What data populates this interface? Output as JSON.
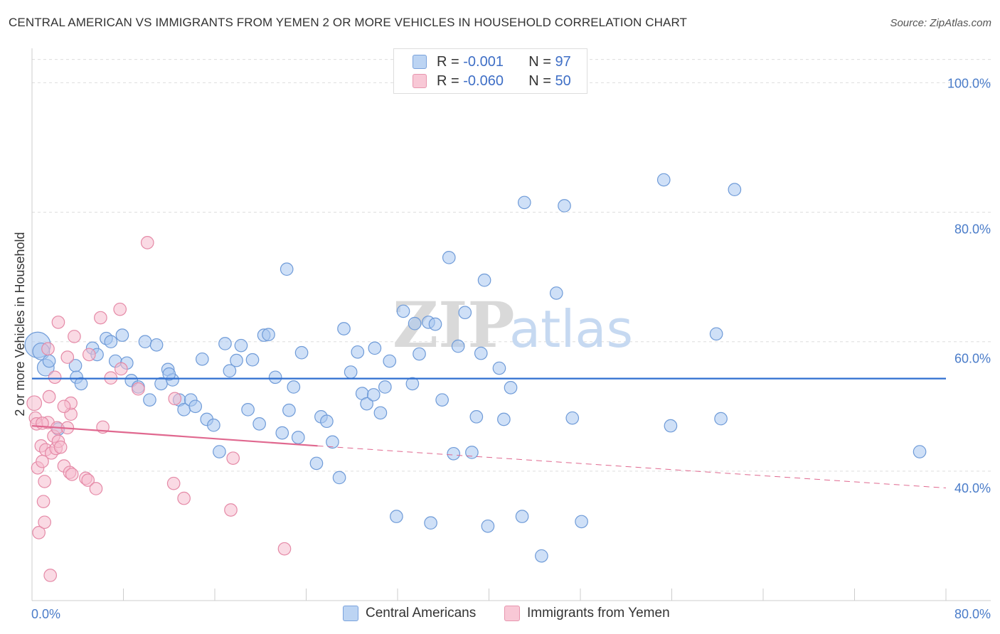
{
  "header": {
    "title": "CENTRAL AMERICAN VS IMMIGRANTS FROM YEMEN 2 OR MORE VEHICLES IN HOUSEHOLD CORRELATION CHART",
    "source": "Source: ZipAtlas.com"
  },
  "watermark": {
    "zip": "ZIP",
    "atlas": "atlas"
  },
  "legend": {
    "rows": [
      {
        "r_label": "R =",
        "r_value": "-0.001",
        "n_label": "N =",
        "n_value": "97",
        "color": "#a8c6f0"
      },
      {
        "r_label": "R =",
        "r_value": "-0.060",
        "n_label": "N =",
        "n_value": "50",
        "color": "#f4b5c8"
      }
    ]
  },
  "bottom_legend": {
    "series1": "Central Americans",
    "series2": "Immigrants from Yemen"
  },
  "colors": {
    "blue_fill": "#a8c6f0",
    "blue_stroke": "#6f9bd8",
    "blue_line": "#2f6fd0",
    "pink_fill": "#f6bccd",
    "pink_stroke": "#e58aa7",
    "pink_line": "#e0688f",
    "axis_text": "#4a7cc9",
    "grid": "#dddddd"
  },
  "chart_data": {
    "type": "scatter",
    "title": "CENTRAL AMERICAN VS IMMIGRANTS FROM YEMEN 2 OR MORE VEHICLES IN HOUSEHOLD CORRELATION CHART",
    "xlabel": "",
    "ylabel": "2 or more Vehicles in Household",
    "xlim": [
      0,
      80
    ],
    "ylim": [
      20,
      104
    ],
    "x_tick_labels": [
      "0.0%",
      "80.0%"
    ],
    "y_ticks": [
      40,
      60,
      80,
      100
    ],
    "y_tick_labels": [
      "40.0%",
      "60.0%",
      "80.0%",
      "100.0%"
    ],
    "grid": true,
    "legend_position": "top-center",
    "series": [
      {
        "name": "Central Americans",
        "R": -0.001,
        "N": 97,
        "trend": {
          "x0": 0,
          "y0": 54.3,
          "x1": 80,
          "y1": 54.3
        },
        "points": [
          [
            0.5,
            59.5,
            22
          ],
          [
            0.8,
            58.5,
            14
          ],
          [
            1.2,
            56.0,
            14
          ],
          [
            1.5,
            57.0,
            10
          ],
          [
            2.3,
            46.5,
            10
          ],
          [
            3.8,
            56.3,
            10
          ],
          [
            3.9,
            54.5,
            10
          ],
          [
            4.3,
            53.5,
            10
          ],
          [
            5.3,
            59.0,
            10
          ],
          [
            5.7,
            58.0,
            10
          ],
          [
            6.5,
            60.5,
            10
          ],
          [
            6.9,
            60.0,
            10
          ],
          [
            7.3,
            57.0,
            10
          ],
          [
            7.9,
            61.0,
            10
          ],
          [
            8.3,
            56.7,
            10
          ],
          [
            8.7,
            54.0,
            10
          ],
          [
            9.3,
            53.0,
            10
          ],
          [
            9.9,
            60.0,
            10
          ],
          [
            10.3,
            51.0,
            10
          ],
          [
            10.9,
            59.5,
            10
          ],
          [
            11.3,
            53.5,
            10
          ],
          [
            11.9,
            55.7,
            10
          ],
          [
            12.3,
            54.1,
            10
          ],
          [
            12.9,
            51.0,
            10
          ],
          [
            13.3,
            49.5,
            10
          ],
          [
            13.9,
            51.0,
            10
          ],
          [
            14.3,
            50.0,
            10
          ],
          [
            14.9,
            57.3,
            10
          ],
          [
            15.3,
            48.0,
            10
          ],
          [
            15.9,
            47.1,
            10
          ],
          [
            16.4,
            43.0,
            10
          ],
          [
            16.9,
            59.7,
            10
          ],
          [
            17.3,
            55.5,
            10
          ],
          [
            17.9,
            57.1,
            10
          ],
          [
            18.3,
            59.4,
            10
          ],
          [
            18.9,
            49.5,
            10
          ],
          [
            19.3,
            57.2,
            10
          ],
          [
            19.9,
            47.3,
            10
          ],
          [
            20.3,
            61.0,
            10
          ],
          [
            20.7,
            61.1,
            10
          ],
          [
            21.3,
            54.5,
            10
          ],
          [
            21.9,
            45.9,
            10
          ],
          [
            22.3,
            71.2,
            10
          ],
          [
            22.5,
            49.4,
            10
          ],
          [
            22.9,
            53.0,
            10
          ],
          [
            23.3,
            45.2,
            10
          ],
          [
            23.6,
            58.3,
            10
          ],
          [
            24.9,
            41.2,
            10
          ],
          [
            25.3,
            48.4,
            10
          ],
          [
            25.8,
            47.7,
            10
          ],
          [
            26.3,
            44.5,
            10
          ],
          [
            26.9,
            39.0,
            10
          ],
          [
            27.3,
            62.0,
            10
          ],
          [
            27.9,
            55.3,
            10
          ],
          [
            28.5,
            58.4,
            10
          ],
          [
            28.9,
            52.0,
            10
          ],
          [
            29.3,
            50.4,
            10
          ],
          [
            29.9,
            51.8,
            10
          ],
          [
            30.5,
            49.0,
            10
          ],
          [
            30.9,
            53.0,
            10
          ],
          [
            31.3,
            57.0,
            10
          ],
          [
            31.9,
            33.0,
            10
          ],
          [
            32.5,
            64.7,
            10
          ],
          [
            33.3,
            53.5,
            10
          ],
          [
            33.5,
            62.8,
            10
          ],
          [
            33.9,
            58.1,
            10
          ],
          [
            34.9,
            32.0,
            10
          ],
          [
            34.7,
            63.0,
            10
          ],
          [
            35.3,
            62.7,
            10
          ],
          [
            35.9,
            51.0,
            10
          ],
          [
            36.5,
            73.0,
            10
          ],
          [
            36.9,
            42.7,
            10
          ],
          [
            37.3,
            59.3,
            10
          ],
          [
            37.9,
            64.5,
            10
          ],
          [
            38.5,
            42.9,
            10
          ],
          [
            38.9,
            48.4,
            10
          ],
          [
            39.3,
            58.2,
            10
          ],
          [
            39.6,
            69.5,
            10
          ],
          [
            39.9,
            31.5,
            10
          ],
          [
            40.9,
            55.9,
            10
          ],
          [
            41.3,
            48.0,
            10
          ],
          [
            41.9,
            52.9,
            10
          ],
          [
            42.9,
            33.0,
            10
          ],
          [
            43.1,
            81.5,
            10
          ],
          [
            44.6,
            26.9,
            10
          ],
          [
            45.9,
            67.5,
            10
          ],
          [
            46.6,
            81.0,
            10
          ],
          [
            47.3,
            48.2,
            10
          ],
          [
            48.1,
            32.2,
            10
          ],
          [
            55.3,
            85.0,
            10
          ],
          [
            55.9,
            47.0,
            10
          ],
          [
            59.9,
            61.2,
            10
          ],
          [
            60.3,
            48.1,
            10
          ],
          [
            61.5,
            83.5,
            10
          ],
          [
            77.7,
            43.0,
            10
          ],
          [
            30.0,
            59.0,
            10
          ],
          [
            12.0,
            55.0,
            10
          ]
        ]
      },
      {
        "name": "Immigrants from Yemen",
        "R": -0.06,
        "N": 50,
        "trend": {
          "x0": 0,
          "y0": 47.0,
          "x1": 25,
          "y1": 43.9,
          "dash_x1": 80,
          "dash_y1": 37.4
        },
        "points": [
          [
            0.2,
            50.5,
            12
          ],
          [
            0.3,
            48.2,
            10
          ],
          [
            0.4,
            47.3,
            10
          ],
          [
            0.5,
            40.5,
            10
          ],
          [
            0.6,
            30.5,
            10
          ],
          [
            0.8,
            43.9,
            10
          ],
          [
            0.9,
            41.5,
            10
          ],
          [
            1.0,
            35.3,
            10
          ],
          [
            1.1,
            32.1,
            10
          ],
          [
            1.1,
            38.4,
            10
          ],
          [
            1.2,
            43.3,
            10
          ],
          [
            1.4,
            47.5,
            10
          ],
          [
            1.4,
            58.9,
            10
          ],
          [
            1.5,
            51.5,
            10
          ],
          [
            1.6,
            23.9,
            10
          ],
          [
            1.7,
            42.8,
            10
          ],
          [
            1.9,
            45.4,
            10
          ],
          [
            2.0,
            54.5,
            10
          ],
          [
            2.1,
            43.5,
            10
          ],
          [
            2.2,
            46.7,
            10
          ],
          [
            2.3,
            63.0,
            10
          ],
          [
            2.3,
            44.6,
            10
          ],
          [
            2.5,
            43.7,
            10
          ],
          [
            2.8,
            40.8,
            10
          ],
          [
            3.1,
            57.6,
            10
          ],
          [
            3.1,
            46.7,
            10
          ],
          [
            3.3,
            39.8,
            10
          ],
          [
            3.4,
            48.8,
            10
          ],
          [
            3.4,
            50.5,
            10
          ],
          [
            3.5,
            39.5,
            10
          ],
          [
            3.7,
            60.8,
            10
          ],
          [
            4.7,
            38.9,
            10
          ],
          [
            4.9,
            38.6,
            10
          ],
          [
            5.6,
            37.3,
            10
          ],
          [
            6.0,
            63.7,
            10
          ],
          [
            6.2,
            46.8,
            10
          ],
          [
            6.9,
            54.4,
            10
          ],
          [
            7.7,
            65.0,
            10
          ],
          [
            7.8,
            55.8,
            10
          ],
          [
            9.3,
            52.7,
            10
          ],
          [
            10.1,
            75.3,
            10
          ],
          [
            12.4,
            38.1,
            10
          ],
          [
            12.5,
            51.2,
            10
          ],
          [
            13.3,
            35.8,
            10
          ],
          [
            17.4,
            34.0,
            10
          ],
          [
            17.6,
            42.0,
            10
          ],
          [
            22.1,
            28.0,
            10
          ],
          [
            0.9,
            47.4,
            10
          ],
          [
            2.8,
            50.0,
            10
          ],
          [
            5.0,
            58.0,
            10
          ]
        ]
      }
    ]
  }
}
